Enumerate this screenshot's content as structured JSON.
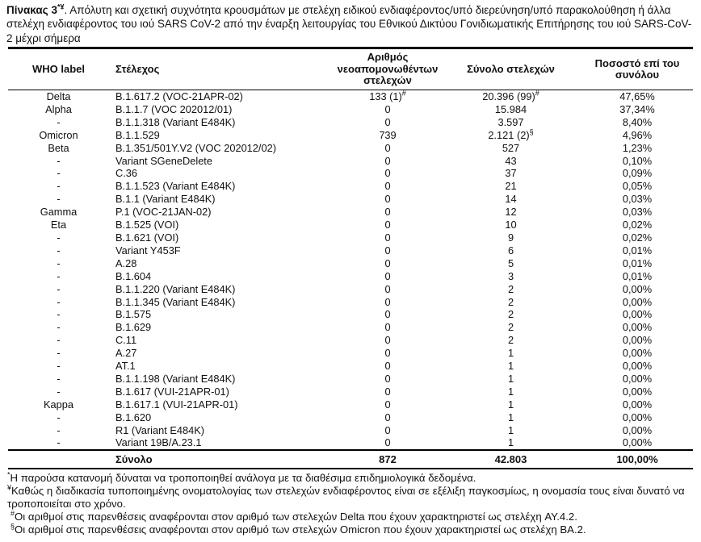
{
  "colors": {
    "background": "#ffffff",
    "text": "#111111",
    "border": "#000000"
  },
  "title": {
    "prefix": "Πίνακας 3",
    "prefix_sup": "*¥",
    "rest": ". Απόλυτη και σχετική συχνότητα κρουσμάτων με στελέχη ειδικού ενδιαφέροντος/υπό διερεύνηση/υπό παρακολούθηση ή άλλα στελέχη ενδιαφέροντος του ιού SARS CoV-2 από την έναρξη λειτουργίας του Εθνικού Δικτύου Γονιδιωματικής Επιτήρησης του ιού SARS-CoV-2 μέχρι σήμερα"
  },
  "table": {
    "headers": [
      "WHO label",
      "Στέλεχος",
      "Αριθμός νεοαπομονωθέντων στελεχών",
      "Σύνολο στελεχών",
      "Ποσοστό επί του συνόλου"
    ],
    "rows": [
      {
        "who": "Delta",
        "strain": "B.1.617.2 (VOC-21APR-02)",
        "new": "133 (1)",
        "new_sup": "#",
        "total": "20.396 (99)",
        "total_sup": "#",
        "pct": "47,65%"
      },
      {
        "who": "Alpha",
        "strain": "B.1.1.7 (VOC 202012/01)",
        "new": "0",
        "total": "15.984",
        "pct": "37,34%"
      },
      {
        "who": "-",
        "strain": "B.1.1.318 (Variant E484K)",
        "new": "0",
        "total": "3.597",
        "pct": "8,40%"
      },
      {
        "who": "Omicron",
        "strain": "B.1.1.529",
        "new": "739",
        "total": "2.121 (2)",
        "total_sup": "§",
        "pct": "4,96%"
      },
      {
        "who": "Beta",
        "strain": "B.1.351/501Y.V2 (VOC 202012/02)",
        "new": "0",
        "total": "527",
        "pct": "1,23%"
      },
      {
        "who": "-",
        "strain": "Variant SGeneDelete",
        "new": "0",
        "total": "43",
        "pct": "0,10%"
      },
      {
        "who": "-",
        "strain": "C.36",
        "new": "0",
        "total": "37",
        "pct": "0,09%"
      },
      {
        "who": "-",
        "strain": "B.1.1.523 (Variant E484K)",
        "new": "0",
        "total": "21",
        "pct": "0,05%"
      },
      {
        "who": "-",
        "strain": "B.1.1 (Variant E484K)",
        "new": "0",
        "total": "14",
        "pct": "0,03%"
      },
      {
        "who": "Gamma",
        "strain": "P.1 (VOC-21JAN-02)",
        "new": "0",
        "total": "12",
        "pct": "0,03%"
      },
      {
        "who": "Eta",
        "strain": "B.1.525 (VOI)",
        "new": "0",
        "total": "10",
        "pct": "0,02%"
      },
      {
        "who": "-",
        "strain": "B.1.621 (VOI)",
        "new": "0",
        "total": "9",
        "pct": "0,02%"
      },
      {
        "who": "-",
        "strain": "Variant Y453F",
        "new": "0",
        "total": "6",
        "pct": "0,01%"
      },
      {
        "who": "-",
        "strain": "A.28",
        "new": "0",
        "total": "5",
        "pct": "0,01%"
      },
      {
        "who": "-",
        "strain": "B.1.604",
        "new": "0",
        "total": "3",
        "pct": "0,01%"
      },
      {
        "who": "-",
        "strain": "B.1.1.220 (Variant E484K)",
        "new": "0",
        "total": "2",
        "pct": "0,00%"
      },
      {
        "who": "-",
        "strain": "B.1.1.345 (Variant E484K)",
        "new": "0",
        "total": "2",
        "pct": "0,00%"
      },
      {
        "who": "-",
        "strain": "B.1.575",
        "new": "0",
        "total": "2",
        "pct": "0,00%"
      },
      {
        "who": "-",
        "strain": "B.1.629",
        "new": "0",
        "total": "2",
        "pct": "0,00%"
      },
      {
        "who": "-",
        "strain": "C.11",
        "new": "0",
        "total": "2",
        "pct": "0,00%"
      },
      {
        "who": "-",
        "strain": "A.27",
        "new": "0",
        "total": "1",
        "pct": "0,00%"
      },
      {
        "who": "-",
        "strain": "AT.1",
        "new": "0",
        "total": "1",
        "pct": "0,00%"
      },
      {
        "who": "-",
        "strain": "B.1.1.198 (Variant E484K)",
        "new": "0",
        "total": "1",
        "pct": "0,00%"
      },
      {
        "who": "-",
        "strain": "B.1.617 (VUI-21APR-01)",
        "new": "0",
        "total": "1",
        "pct": "0,00%"
      },
      {
        "who": "Kappa",
        "strain": "B.1.617.1 (VUI-21APR-01)",
        "new": "0",
        "total": "1",
        "pct": "0,00%"
      },
      {
        "who": "-",
        "strain": "B.1.620",
        "new": "0",
        "total": "1",
        "pct": "0,00%"
      },
      {
        "who": "-",
        "strain": "R1 (Variant E484K)",
        "new": "0",
        "total": "1",
        "pct": "0,00%"
      },
      {
        "who": "-",
        "strain": "Variant 19B/A.23.1",
        "new": "0",
        "total": "1",
        "pct": "0,00%"
      }
    ],
    "total_row": {
      "who": "",
      "label": "Σύνολο",
      "new": "872",
      "total": "42.803",
      "pct": "100,00%"
    }
  },
  "footnotes": [
    {
      "marker": "*",
      "text": "Η παρούσα κατανομή δύναται να τροποποιηθεί ανάλογα με τα διαθέσιμα επιδημιολογικά δεδομένα."
    },
    {
      "marker": "¥",
      "text": "Καθώς η διαδικασία τυποποιημένης ονοματολογίας των στελεχών ενδιαφέροντος είναι σε εξέλιξη παγκοσμίως, η ονομασία τους είναι δυνατό να τροποποιείται στο χρόνο."
    },
    {
      "marker": "#",
      "text": "Οι αριθμοί στις παρενθέσεις αναφέρονται στον αριθμό των στελεχών Delta που έχουν χαρακτηριστεί ως στελέχη AY.4.2."
    },
    {
      "marker": "§",
      "text": "Οι αριθμοί στις παρενθέσεις αναφέρονται στον αριθμό των στελεχών Omicron που έχουν χαρακτηριστεί ως στελέχη BA.2."
    }
  ]
}
